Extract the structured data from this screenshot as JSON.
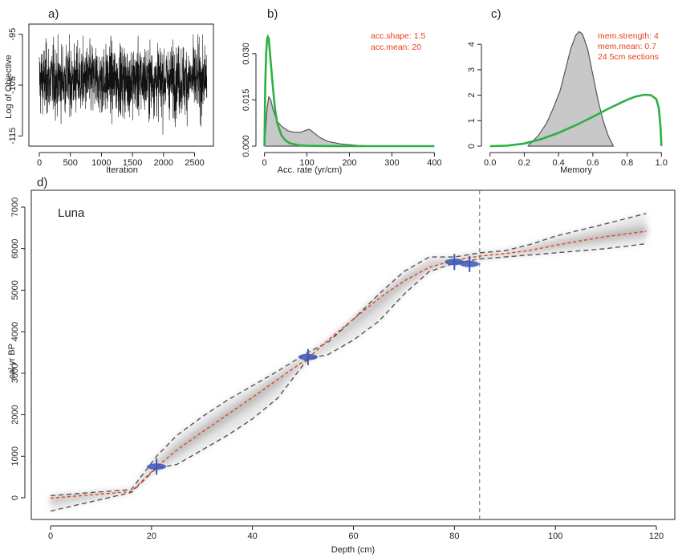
{
  "chart_data": [
    {
      "panel": "a)",
      "type": "line",
      "xlabel": "Iteration",
      "ylabel": "Log of Objective",
      "xlim": [
        0,
        2700
      ],
      "ylim": [
        -117,
        -93
      ],
      "xticks": [
        0,
        500,
        1000,
        1500,
        2000,
        2500
      ],
      "yticks": [
        -95,
        -105,
        -115
      ],
      "trace": {
        "n": 2700,
        "mean": -104,
        "sd": 3.4,
        "min": -117,
        "max": -95
      }
    },
    {
      "panel": "b)",
      "type": "area",
      "xlabel": "Acc. rate (yr/cm)",
      "xlim": [
        -20,
        420
      ],
      "ylim": [
        0,
        0.037
      ],
      "xticks": [
        0,
        100,
        200,
        300,
        400
      ],
      "yticks": [
        0.0,
        0.015,
        0.03
      ],
      "ytick_labels": [
        "0.000",
        "0.015",
        "0.030"
      ],
      "annotations": [
        "acc.shape:  1.5",
        "acc.mean:  20"
      ],
      "series": [
        {
          "role": "posterior",
          "color": "#555555",
          "fill": "#c8c8c8",
          "x": [
            0,
            3,
            6,
            10,
            15,
            20,
            30,
            40,
            55,
            70,
            85,
            95,
            105,
            115,
            130,
            150,
            180,
            220,
            260,
            300
          ],
          "y": [
            0.0,
            0.006,
            0.012,
            0.016,
            0.015,
            0.012,
            0.008,
            0.0065,
            0.005,
            0.0045,
            0.0045,
            0.005,
            0.0055,
            0.0045,
            0.0028,
            0.0015,
            0.0007,
            0.0002,
            5e-05,
            0.0
          ]
        },
        {
          "role": "prior",
          "color": "#2db043",
          "x": [
            0,
            2,
            4,
            6,
            8,
            10,
            12,
            15,
            20,
            25,
            30,
            40,
            50,
            60,
            80,
            100,
            150,
            200,
            300,
            400
          ],
          "y": [
            0.0,
            0.02,
            0.03,
            0.0345,
            0.0355,
            0.035,
            0.032,
            0.027,
            0.019,
            0.012,
            0.0075,
            0.0035,
            0.0018,
            0.0009,
            0.0003,
            0.0001,
            2e-05,
            0.0,
            0.0,
            0.0
          ]
        }
      ]
    },
    {
      "panel": "c)",
      "type": "area",
      "xlabel": "Memory",
      "xlim": [
        -0.05,
        1.05
      ],
      "ylim": [
        0,
        4.7
      ],
      "xticks": [
        0.0,
        0.2,
        0.4,
        0.6,
        0.8,
        1.0
      ],
      "xtick_labels": [
        "0.0",
        "0.2",
        "0.4",
        "0.6",
        "0.8",
        "1.0"
      ],
      "yticks": [
        0,
        1,
        2,
        3,
        4
      ],
      "annotations": [
        "mem.strength: 4",
        "mem.mean: 0.7",
        "24 5cm sections"
      ],
      "series": [
        {
          "role": "posterior",
          "color": "#555555",
          "fill": "#c8c8c8",
          "x": [
            0.22,
            0.28,
            0.33,
            0.37,
            0.41,
            0.44,
            0.47,
            0.5,
            0.52,
            0.54,
            0.57,
            0.6,
            0.63,
            0.66,
            0.69,
            0.72
          ],
          "y": [
            0.0,
            0.4,
            0.9,
            1.5,
            2.2,
            3.0,
            3.8,
            4.35,
            4.5,
            4.4,
            3.8,
            2.8,
            1.8,
            1.0,
            0.4,
            0.0
          ]
        },
        {
          "role": "prior",
          "color": "#2db043",
          "x": [
            0.0,
            0.1,
            0.2,
            0.3,
            0.4,
            0.5,
            0.6,
            0.7,
            0.8,
            0.85,
            0.9,
            0.94,
            0.97,
            0.985,
            0.995,
            1.0
          ],
          "y": [
            0.0,
            0.02,
            0.1,
            0.28,
            0.52,
            0.82,
            1.15,
            1.5,
            1.82,
            1.95,
            2.02,
            2.0,
            1.85,
            1.5,
            0.7,
            0.0
          ]
        }
      ]
    },
    {
      "panel": "d)",
      "type": "line",
      "title": "Luna",
      "xlabel": "Depth (cm)",
      "ylabel": "cal yr BP",
      "xlim": [
        0,
        122
      ],
      "ylim": [
        -450,
        7150
      ],
      "xticks": [
        0,
        20,
        40,
        60,
        80,
        100,
        120
      ],
      "yticks": [
        0,
        1000,
        2000,
        3000,
        4000,
        5000,
        6000,
        7000
      ],
      "hiatus_depth": 85,
      "depth": [
        0,
        16,
        21,
        25,
        30,
        35,
        40,
        45,
        51,
        55,
        60,
        65,
        70,
        75,
        80,
        85,
        90,
        95,
        100,
        105,
        110,
        118
      ],
      "upper": [
        50,
        200,
        1000,
        1500,
        1950,
        2350,
        2700,
        3050,
        3500,
        3750,
        4300,
        4900,
        5450,
        5800,
        5800,
        5900,
        5950,
        6100,
        6300,
        6450,
        6600,
        6850
      ],
      "median": [
        -10,
        150,
        740,
        1150,
        1580,
        2000,
        2420,
        2850,
        3360,
        3800,
        4300,
        4800,
        5220,
        5550,
        5720,
        5820,
        5880,
        5960,
        6080,
        6190,
        6290,
        6420
      ],
      "lower": [
        -320,
        130,
        720,
        800,
        1150,
        1500,
        1900,
        2400,
        3350,
        3450,
        3800,
        4250,
        4900,
        5450,
        5650,
        5750,
        5800,
        5850,
        5900,
        5950,
        6000,
        6120
      ],
      "dates": [
        {
          "depth": 21,
          "age": 750
        },
        {
          "depth": 51,
          "age": 3390
        },
        {
          "depth": 80,
          "age": 5680
        },
        {
          "depth": 83,
          "age": 5630
        }
      ],
      "colors": {
        "median": "#e8401c",
        "bounds": "#555555",
        "dates": "#3a57b8",
        "hiatus": "#666666"
      }
    }
  ]
}
